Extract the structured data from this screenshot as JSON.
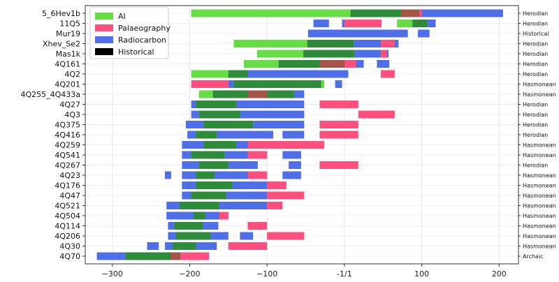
{
  "chart_data": {
    "type": "bar",
    "orientation": "horizontal-range",
    "title": "",
    "xlabel": "",
    "ylabel": "",
    "xlim": [
      -335,
      225
    ],
    "xticks": [
      {
        "value": -300,
        "label": "−300"
      },
      {
        "value": -200,
        "label": "−200"
      },
      {
        "value": -100,
        "label": "−100"
      },
      {
        "value": 0,
        "label": "-1/1"
      },
      {
        "value": 100,
        "label": "100"
      },
      {
        "value": 200,
        "label": "200"
      }
    ],
    "grid": true,
    "legend": {
      "placement": "top-left",
      "entries": [
        {
          "name": "AI",
          "color": "#66dd44"
        },
        {
          "name": "Palaeography",
          "color": "#ff4f7e"
        },
        {
          "name": "Radiocarbon",
          "color": "#4f6fe8"
        },
        {
          "name": "Historical",
          "color": "#000000"
        }
      ]
    },
    "colors": {
      "ai": "#66dd44",
      "palaeography": "#ff4f7e",
      "radiocarbon": "#4f6fe8",
      "overlap": "#2e8b3a"
    },
    "rows": [
      {
        "label": "5_6Hev1b",
        "period": "Herodian",
        "ai": [
          [
            -198,
            97
          ]
        ],
        "palaeo": [
          [
            73,
            100
          ]
        ],
        "radio": [
          [
            8,
            205
          ]
        ]
      },
      {
        "label": "11Q5",
        "period": "Herodian",
        "ai": [
          [
            68,
            107
          ]
        ],
        "palaeo": [
          [
            0,
            48
          ]
        ],
        "radio": [
          [
            -40,
            -20
          ],
          [
            -3,
            48
          ],
          [
            88,
            118
          ]
        ]
      },
      {
        "label": "Mur19",
        "period": "Historical",
        "ai": [],
        "palaeo": [],
        "radio": [
          [
            -47,
            82
          ],
          [
            95,
            110
          ]
        ]
      },
      {
        "label": "Xhev_Se2",
        "period": "Herodian",
        "ai": [
          [
            -143,
            12
          ]
        ],
        "palaeo": [
          [
            47,
            65
          ]
        ],
        "radio": [
          [
            -48,
            70
          ]
        ]
      },
      {
        "label": "Mas1k",
        "period": "Herodian",
        "ai": [
          [
            -113,
            13
          ]
        ],
        "palaeo": [
          [
            47,
            55
          ]
        ],
        "radio": [
          [
            -53,
            57
          ]
        ]
      },
      {
        "label": "4Q161",
        "period": "Herodian",
        "ai": [
          [
            -130,
            0
          ]
        ],
        "palaeo": [
          [
            -32,
            15
          ]
        ],
        "radio": [
          [
            -85,
            25
          ],
          [
            42,
            58
          ]
        ]
      },
      {
        "label": "4Q2",
        "period": "Herodian",
        "ai": [
          [
            -198,
            -125
          ]
        ],
        "palaeo": [
          [
            47,
            65
          ]
        ],
        "radio": [
          [
            -150,
            5
          ]
        ]
      },
      {
        "label": "4Q201",
        "period": "Hasmonean",
        "ai": [
          [
            -143,
            -26
          ]
        ],
        "palaeo": [
          [
            -198,
            -150
          ]
        ],
        "radio": [
          [
            -158,
            -30
          ],
          [
            -12,
            -3
          ]
        ]
      },
      {
        "label": "4Q255_4Q433a",
        "period": "Hasmonean",
        "ai": [
          [
            -188,
            -65
          ]
        ],
        "palaeo": [
          [
            -125,
            -100
          ]
        ],
        "radio": [
          [
            -170,
            -52
          ]
        ]
      },
      {
        "label": "4Q27",
        "period": "Herodian",
        "ai": [
          [
            -192,
            -140
          ]
        ],
        "palaeo": [
          [
            -32,
            18
          ]
        ],
        "radio": [
          [
            -198,
            -52
          ]
        ]
      },
      {
        "label": "4Q3",
        "period": "Herodian",
        "ai": [
          [
            -188,
            -135
          ]
        ],
        "palaeo": [
          [
            18,
            65
          ]
        ],
        "radio": [
          [
            -198,
            -52
          ]
        ]
      },
      {
        "label": "4Q375",
        "period": "Herodian",
        "ai": [
          [
            -182,
            -118
          ]
        ],
        "palaeo": [
          [
            -32,
            18
          ]
        ],
        "radio": [
          [
            -205,
            -52
          ]
        ]
      },
      {
        "label": "4Q416",
        "period": "Herodian",
        "ai": [
          [
            -192,
            -165
          ]
        ],
        "palaeo": [
          [
            -32,
            18
          ]
        ],
        "radio": [
          [
            -203,
            -92
          ],
          [
            -80,
            -52
          ]
        ]
      },
      {
        "label": "4Q259",
        "period": "Hasmonean",
        "ai": [
          [
            -182,
            -140
          ]
        ],
        "palaeo": [
          [
            -125,
            -26
          ]
        ],
        "radio": [
          [
            -210,
            -112
          ],
          [
            -70,
            -60
          ]
        ]
      },
      {
        "label": "4Q541",
        "period": "Hasmonean",
        "ai": [
          [
            -198,
            -155
          ]
        ],
        "palaeo": [
          [
            -125,
            -100
          ]
        ],
        "radio": [
          [
            -210,
            -100
          ],
          [
            -80,
            -56
          ]
        ]
      },
      {
        "label": "4Q267",
        "period": "Herodian",
        "ai": [
          [
            -188,
            -150
          ]
        ],
        "palaeo": [
          [
            -32,
            18
          ]
        ],
        "radio": [
          [
            -210,
            -112
          ],
          [
            -72,
            -56
          ]
        ]
      },
      {
        "label": "4Q23",
        "period": "Hasmonean",
        "ai": [
          [
            -192,
            -168
          ]
        ],
        "palaeo": [
          [
            -125,
            -100
          ]
        ],
        "radio": [
          [
            -232,
            -224
          ],
          [
            -210,
            -100
          ],
          [
            -80,
            -56
          ]
        ]
      },
      {
        "label": "4Q176",
        "period": "Hasmonean",
        "ai": [
          [
            -192,
            -145
          ]
        ],
        "palaeo": [
          [
            -100,
            -75
          ]
        ],
        "radio": [
          [
            -210,
            -100
          ],
          [
            -92,
            -76
          ]
        ]
      },
      {
        "label": "4Q47",
        "period": "Hasmonean",
        "ai": [
          [
            -198,
            -153
          ]
        ],
        "palaeo": [
          [
            -100,
            -52
          ]
        ],
        "radio": [
          [
            -210,
            -100
          ]
        ]
      },
      {
        "label": "4Q521",
        "period": "Hasmonean",
        "ai": [
          [
            -213,
            -162
          ]
        ],
        "palaeo": [
          [
            -100,
            -80
          ]
        ],
        "radio": [
          [
            -230,
            -100
          ]
        ]
      },
      {
        "label": "4Q504",
        "period": "Hasmonean",
        "ai": [
          [
            -195,
            -180
          ]
        ],
        "palaeo": [
          [
            -162,
            -150
          ]
        ],
        "radio": [
          [
            -230,
            -150
          ]
        ]
      },
      {
        "label": "4Q114",
        "period": "Hasmonean",
        "ai": [
          [
            -220,
            -183
          ]
        ],
        "palaeo": [
          [
            -125,
            -100
          ]
        ],
        "radio": [
          [
            -228,
            -163
          ]
        ]
      },
      {
        "label": "4Q206",
        "period": "Hasmonean",
        "ai": [
          [
            -218,
            -173
          ]
        ],
        "palaeo": [
          [
            -100,
            -52
          ]
        ],
        "radio": [
          [
            -228,
            -150
          ],
          [
            -135,
            -118
          ]
        ]
      },
      {
        "label": "4Q30",
        "period": "Hasmonean",
        "ai": [
          [
            -222,
            -192
          ]
        ],
        "palaeo": [
          [
            -150,
            -100
          ]
        ],
        "radio": [
          [
            -255,
            -240
          ],
          [
            -232,
            -165
          ]
        ]
      },
      {
        "label": "4Q70",
        "period": "Archaic",
        "ai": [
          [
            -283,
            -212
          ]
        ],
        "palaeo": [
          [
            -225,
            -175
          ]
        ],
        "radio": [
          [
            -320,
            -200
          ]
        ]
      }
    ]
  }
}
